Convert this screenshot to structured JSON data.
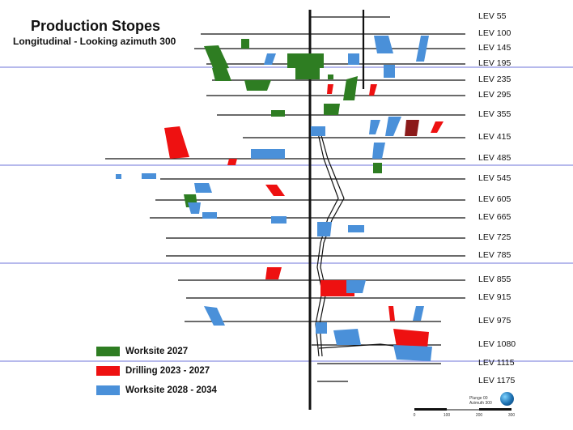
{
  "title": "Production Stopes",
  "subtitle": "Longitudinal - Looking azimuth 300",
  "levels": [
    "LEV 55",
    "LEV 100",
    "LEV 145",
    "LEV 195",
    "LEV 235",
    "LEV 295",
    "LEV 355",
    "LEV 415",
    "LEV 485",
    "LEV 545",
    "LEV 605",
    "LEV 665",
    "LEV 725",
    "LEV 785",
    "LEV 855",
    "LEV 915",
    "LEV 975",
    "LEV 1080",
    "LEV 1115",
    "LEV 1175"
  ],
  "legend": [
    {
      "label": "Worksite 2027",
      "color": "#2e7d22"
    },
    {
      "label": "Drilling 2023 - 2027",
      "color": "#ee1111"
    },
    {
      "label": "Worksite 2028 - 2034",
      "color": "#4a90d9"
    }
  ],
  "scale_bar": {
    "ticks": [
      "0",
      "100",
      "200",
      "300"
    ]
  },
  "orientation": {
    "plunge": "Plunge 00",
    "azimuth": "Azimuth 300"
  },
  "colors": {
    "grid": "#8a8fe0",
    "level": "#111111",
    "dark_red": "#8b1a1a"
  }
}
